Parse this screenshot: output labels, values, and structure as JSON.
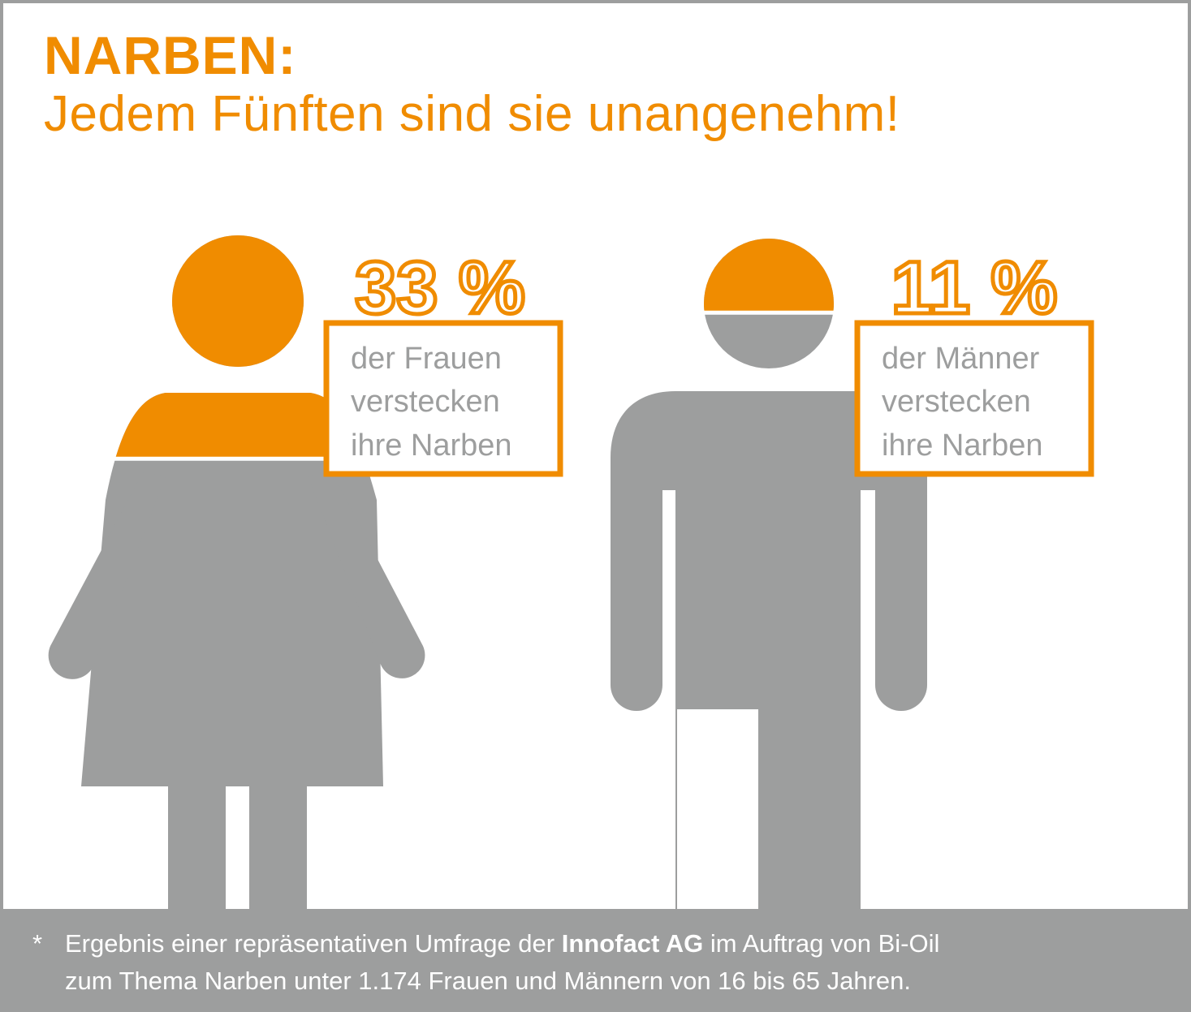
{
  "title": {
    "line1": "NARBEN:",
    "line2": "Jedem Fünften sind sie unangenehm!"
  },
  "colors": {
    "accent": "#f08c00",
    "figure": "#9d9e9e",
    "background": "#ffffff"
  },
  "chart_data": {
    "type": "pictogram",
    "series": [
      {
        "figure": "woman-icon",
        "value": 33,
        "value_label": "33 %",
        "caption": [
          "der Frauen",
          "verstecken",
          "ihre Narben"
        ]
      },
      {
        "figure": "man-icon",
        "value": 11,
        "value_label": "11 %",
        "caption": [
          "der Männer",
          "verstecken",
          "ihre Narben"
        ]
      }
    ],
    "unit": "%"
  },
  "footnote": {
    "marker": "*",
    "line1_before": "Ergebnis einer repräsentativen Umfrage der ",
    "line1_bold": "Innofact AG",
    "line1_after": " im Auftrag von Bi-Oil",
    "line2": "zum Thema Narben unter 1.174 Frauen und Männern von 16 bis 65 Jahren."
  }
}
